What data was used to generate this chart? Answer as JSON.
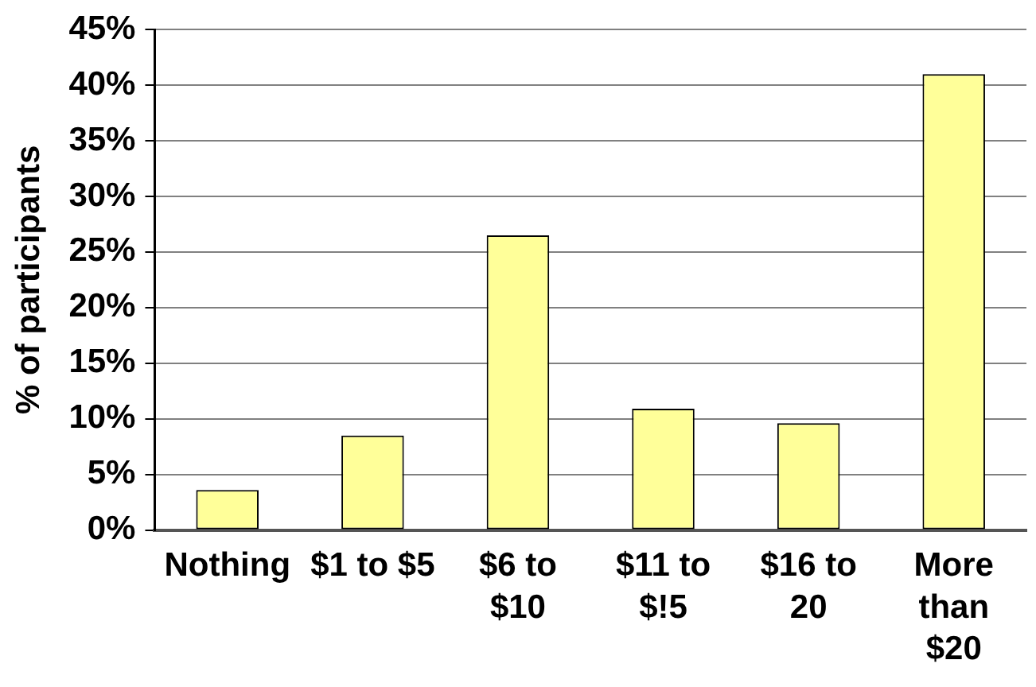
{
  "chart_data": {
    "type": "bar",
    "ylabel": "% of participants",
    "categories": [
      "Nothing",
      "$1 to $5",
      "$6 to $10",
      "$11 to $!5",
      "$16 to 20",
      "More than $20"
    ],
    "values": [
      3.6,
      8.5,
      26.5,
      10.9,
      9.6,
      41.0
    ],
    "color": "#ffff99",
    "ylim": [
      0,
      45
    ],
    "yticks": [
      {
        "value": 0,
        "label": "0%"
      },
      {
        "value": 5,
        "label": "5%"
      },
      {
        "value": 10,
        "label": "10%"
      },
      {
        "value": 15,
        "label": "15%"
      },
      {
        "value": 20,
        "label": "20%"
      },
      {
        "value": 25,
        "label": "25%"
      },
      {
        "value": 30,
        "label": "30%"
      },
      {
        "value": 35,
        "label": "35%"
      },
      {
        "value": 40,
        "label": "40%"
      },
      {
        "value": 45,
        "label": "45%"
      }
    ],
    "grid": "y"
  }
}
